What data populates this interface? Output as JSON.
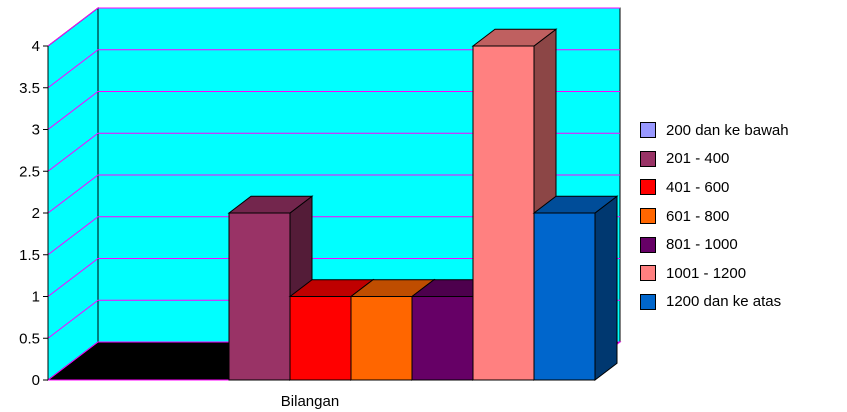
{
  "chart_data": {
    "type": "bar",
    "style": "3d-clustered-column",
    "categories": [
      "Bilangan"
    ],
    "xlabel": "Bilangan",
    "ylabel": "",
    "ylim": [
      0,
      4
    ],
    "yticks": [
      "0",
      "0.5",
      "1",
      "1.5",
      "2",
      "2.5",
      "3",
      "3.5",
      "4"
    ],
    "grid": true,
    "legend_position": "right",
    "wall_color": "#00ffff",
    "floor_color": "#000000",
    "gridline_color": "#ff00ff",
    "series": [
      {
        "name": "200 dan ke bawah",
        "color": "#9999ff",
        "values": [
          0
        ]
      },
      {
        "name": "201 - 400",
        "color": "#993366",
        "values": [
          2
        ]
      },
      {
        "name": "401 - 600",
        "color": "#ff0000",
        "values": [
          1
        ]
      },
      {
        "name": "601 - 800",
        "color": "#ff6600",
        "values": [
          1
        ]
      },
      {
        "name": "801 - 1000",
        "color": "#660066",
        "values": [
          1
        ]
      },
      {
        "name": "1001 - 1200",
        "color": "#ff8080",
        "values": [
          4
        ]
      },
      {
        "name": "1200 dan ke atas",
        "color": "#0066cc",
        "values": [
          2
        ]
      }
    ]
  }
}
